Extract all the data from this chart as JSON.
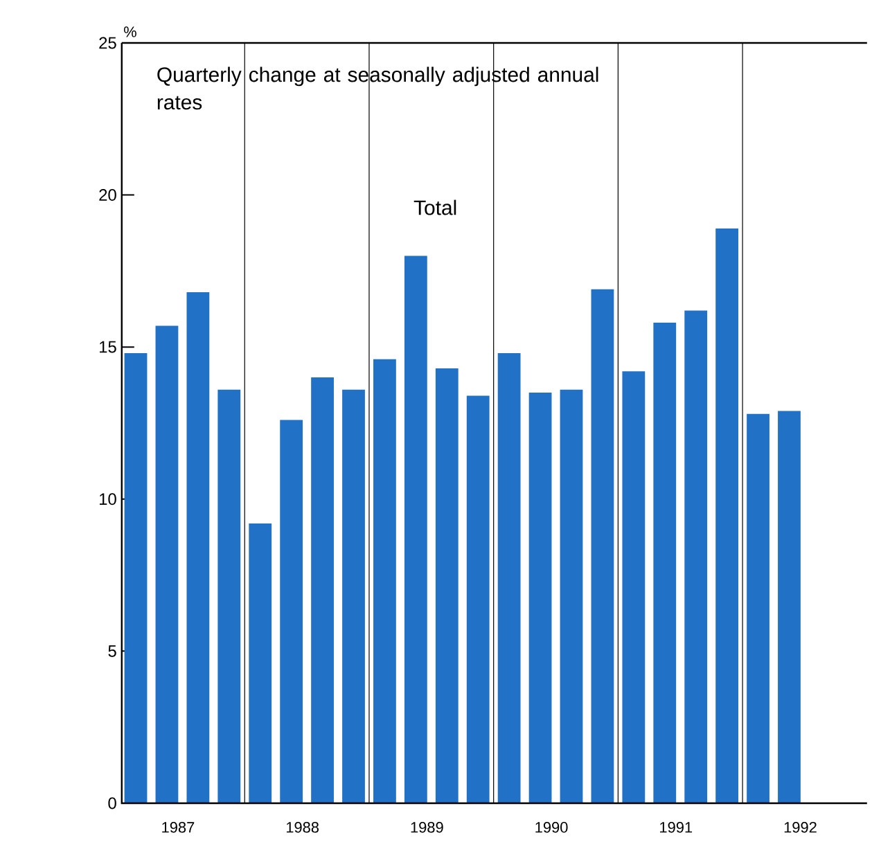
{
  "chart_data": {
    "type": "bar",
    "title": "Total",
    "subtitle": "Quarterly change at seasonally adjusted annual rates",
    "ylabel": "%",
    "categories": [
      null,
      "1987",
      null,
      null,
      null,
      "1988",
      null,
      null,
      null,
      "1989",
      null,
      null,
      null,
      "1990",
      null,
      null,
      null,
      "1991",
      null,
      null,
      null,
      "1992"
    ],
    "values": [
      14.8,
      15.7,
      16.8,
      13.6,
      9.2,
      12.6,
      14.0,
      13.6,
      14.6,
      18.0,
      14.3,
      13.4,
      14.8,
      13.5,
      13.6,
      16.9,
      14.2,
      15.8,
      16.2,
      18.9,
      12.8,
      12.9
    ],
    "color": "#2171c7",
    "ylim": [
      0,
      25
    ],
    "yticks": [
      0,
      5,
      10,
      15,
      20,
      25
    ],
    "grid": "x"
  }
}
